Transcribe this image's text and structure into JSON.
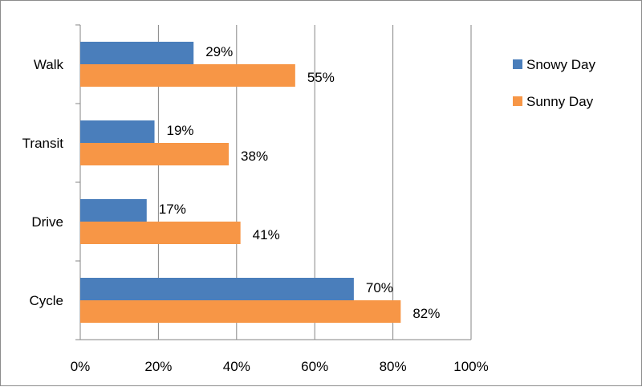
{
  "chart_data": {
    "type": "bar",
    "orientation": "horizontal",
    "categories": [
      "Walk",
      "Transit",
      "Drive",
      "Cycle"
    ],
    "series": [
      {
        "name": "Snowy Day",
        "color": "#4a7ebb",
        "values": [
          29,
          19,
          17,
          70
        ],
        "labels": [
          "29%",
          "19%",
          "17%",
          "70%"
        ]
      },
      {
        "name": "Sunny Day",
        "color": "#f79646",
        "values": [
          55,
          38,
          41,
          82
        ],
        "labels": [
          "55%",
          "38%",
          "41%",
          "82%"
        ]
      }
    ],
    "xlim": [
      0,
      100
    ],
    "xticks": [
      0,
      20,
      40,
      60,
      80,
      100
    ],
    "xtick_labels": [
      "0%",
      "20%",
      "40%",
      "60%",
      "80%",
      "100%"
    ],
    "grid": "vertical",
    "legend_position": "right",
    "title": "",
    "xlabel": "",
    "ylabel": ""
  }
}
